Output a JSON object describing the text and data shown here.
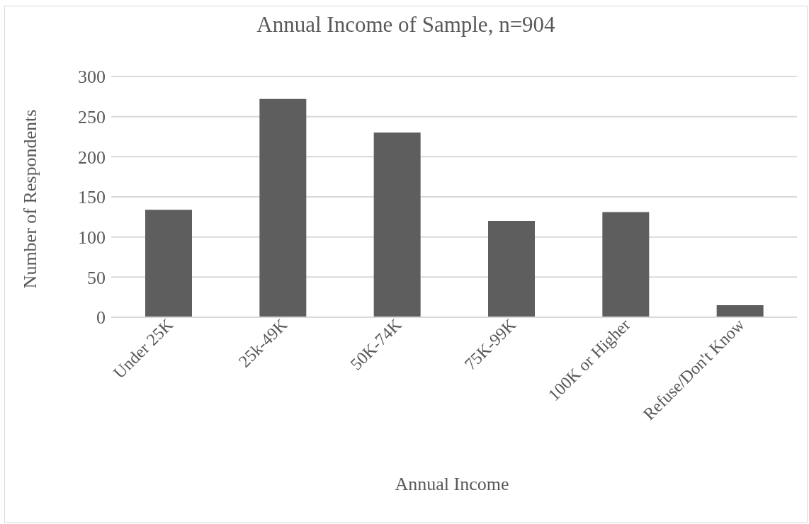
{
  "chart_data": {
    "type": "bar",
    "title": "Annual Income of Sample, n=904",
    "xlabel": "Annual Income",
    "ylabel": "Number of Respondents",
    "categories": [
      "Under 25K",
      "25k-49K",
      "50K-74K",
      "75K-99K",
      "100K or Higher",
      "Refuse/Don't Know"
    ],
    "values": [
      134,
      272,
      230,
      120,
      131,
      15
    ],
    "color": "#5e5e5e",
    "ylim": [
      0,
      300
    ],
    "yticks": [
      0,
      50,
      100,
      150,
      200,
      250,
      300
    ],
    "grid": "y"
  }
}
